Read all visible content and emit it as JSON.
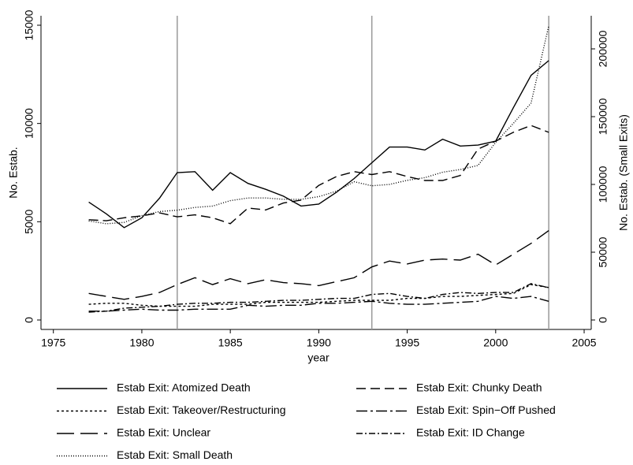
{
  "chart_data": {
    "type": "line",
    "x_label": "year",
    "y_label": "No. Estab.",
    "y2_label": "No. Estab. (Small Exits)",
    "x": [
      1977,
      1978,
      1979,
      1980,
      1981,
      1982,
      1983,
      1984,
      1985,
      1986,
      1987,
      1988,
      1989,
      1990,
      1991,
      1992,
      1993,
      1994,
      1995,
      1996,
      1997,
      1998,
      1999,
      2000,
      2001,
      2002,
      2003
    ],
    "xlim": [
      1974.3,
      2005.4
    ],
    "xticks": [
      1975,
      1980,
      1985,
      1990,
      1995,
      2000,
      2005
    ],
    "ylim": [
      -481,
      15481
    ],
    "yticks": [
      0,
      5000,
      10000,
      15000
    ],
    "y2lim": [
      -6977,
      224419
    ],
    "y2ticks": [
      0,
      50000,
      100000,
      150000,
      200000
    ],
    "xlines": [
      1982,
      1993,
      2003
    ],
    "series": [
      {
        "name": "Estab Exit: Atomized Death",
        "color": "#000000",
        "dash": "none",
        "values": [
          6000,
          5400,
          4700,
          5200,
          6200,
          7500,
          7550,
          6600,
          7500,
          6950,
          6650,
          6300,
          5800,
          5900,
          6500,
          7200,
          8000,
          8800,
          8800,
          8650,
          9200,
          8850,
          8900,
          9100,
          10800,
          12450,
          13200
        ]
      },
      {
        "name": "Estab Exit: Chunky Death",
        "color": "#000000",
        "dash": "12,6",
        "values": [
          5100,
          5050,
          5200,
          5300,
          5450,
          5250,
          5350,
          5200,
          4900,
          5700,
          5600,
          5950,
          6100,
          6850,
          7300,
          7550,
          7400,
          7550,
          7300,
          7100,
          7100,
          7350,
          8700,
          9100,
          9550,
          9900,
          9550
        ]
      },
      {
        "name": "Estab Exit: Takeover/Restructuring",
        "color": "#000000",
        "dash": "3,3",
        "values": [
          800,
          850,
          850,
          750,
          700,
          700,
          700,
          800,
          800,
          800,
          900,
          900,
          900,
          900,
          950,
          1000,
          1000,
          1000,
          1100,
          1100,
          1200,
          1200,
          1250,
          1300,
          1350,
          1800,
          1650
        ]
      },
      {
        "name": "Estab Exit: Spin−Off Pushed",
        "color": "#000000",
        "dash": "14,4,3,4",
        "values": [
          450,
          450,
          500,
          550,
          500,
          500,
          550,
          550,
          550,
          750,
          700,
          750,
          750,
          850,
          850,
          900,
          950,
          850,
          800,
          800,
          850,
          900,
          950,
          1200,
          1100,
          1200,
          950
        ]
      },
      {
        "name": "Estab Exit: Unclear",
        "color": "#000000",
        "dash": "22,8",
        "values": [
          1350,
          1200,
          1050,
          1200,
          1400,
          1800,
          2150,
          1800,
          2100,
          1850,
          2050,
          1900,
          1850,
          1750,
          1950,
          2150,
          2700,
          3000,
          2850,
          3050,
          3100,
          3050,
          3350,
          2800,
          3350,
          3900,
          4550
        ]
      },
      {
        "name": "Estab Exit: ID Change",
        "color": "#000000",
        "dash": "8,3,2,3",
        "values": [
          400,
          450,
          600,
          650,
          700,
          800,
          850,
          850,
          900,
          900,
          950,
          1000,
          1000,
          1050,
          1100,
          1100,
          1300,
          1350,
          1200,
          1100,
          1300,
          1400,
          1350,
          1400,
          1400,
          1850,
          1650
        ]
      },
      {
        "name": "Estab Exit: Small Death",
        "color": "#000000",
        "dash": "1,2",
        "axis": "y2",
        "values": [
          73000,
          71000,
          72000,
          77000,
          80000,
          81000,
          83000,
          84000,
          88000,
          90000,
          90000,
          89000,
          89000,
          91000,
          95000,
          102000,
          99000,
          100000,
          103000,
          105000,
          109000,
          111000,
          114000,
          131000,
          145000,
          160000,
          217000
        ]
      }
    ]
  }
}
